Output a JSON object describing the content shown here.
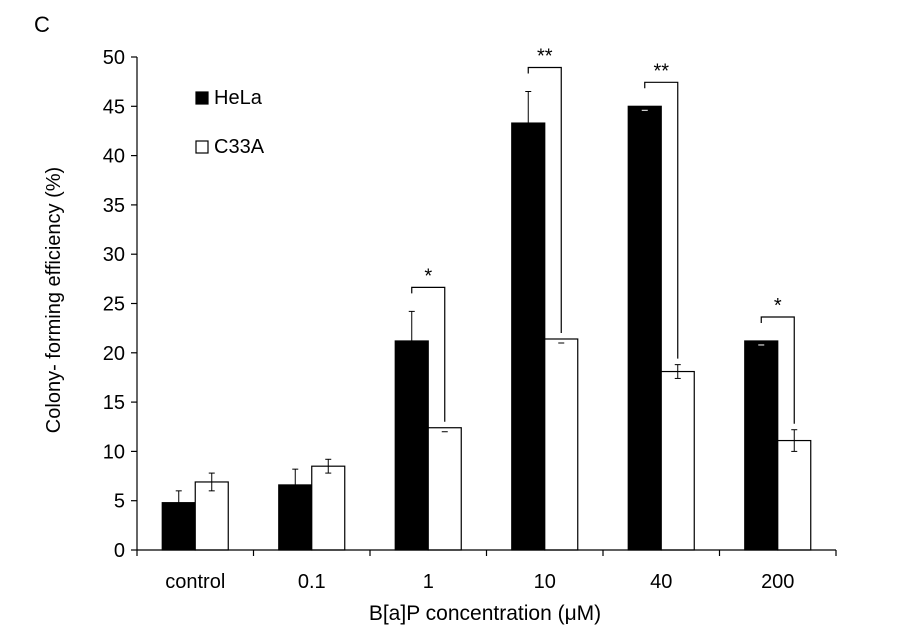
{
  "panel_label": "C",
  "chart_data": {
    "type": "bar",
    "categories": [
      "control",
      "0.1",
      "1",
      "10",
      "40",
      "200"
    ],
    "series": [
      {
        "name": "HeLa",
        "fill": "#000000",
        "values": [
          4.8,
          6.6,
          21.2,
          43.3,
          45.0,
          21.2
        ],
        "errors": [
          1.2,
          1.6,
          3.0,
          3.2,
          0,
          0
        ]
      },
      {
        "name": "C33A",
        "fill": "#ffffff",
        "values": [
          6.9,
          8.5,
          12.4,
          21.4,
          18.1,
          11.1
        ],
        "errors": [
          0.9,
          0.7,
          0,
          0,
          0.7,
          1.1
        ]
      }
    ],
    "significance": [
      {
        "category": "1",
        "label": "*"
      },
      {
        "category": "10",
        "label": "**"
      },
      {
        "category": "40",
        "label": "**"
      },
      {
        "category": "200",
        "label": "*"
      }
    ],
    "xlabel": "B[a]P concentration (μM)",
    "ylabel": "Colony- forming efficiency (%)",
    "ylim": [
      0,
      50
    ],
    "yticks": [
      "0",
      "5",
      "10",
      "15",
      "20",
      "25",
      "30",
      "35",
      "40",
      "45",
      "50"
    ],
    "grid": false,
    "legend": "top-left"
  }
}
